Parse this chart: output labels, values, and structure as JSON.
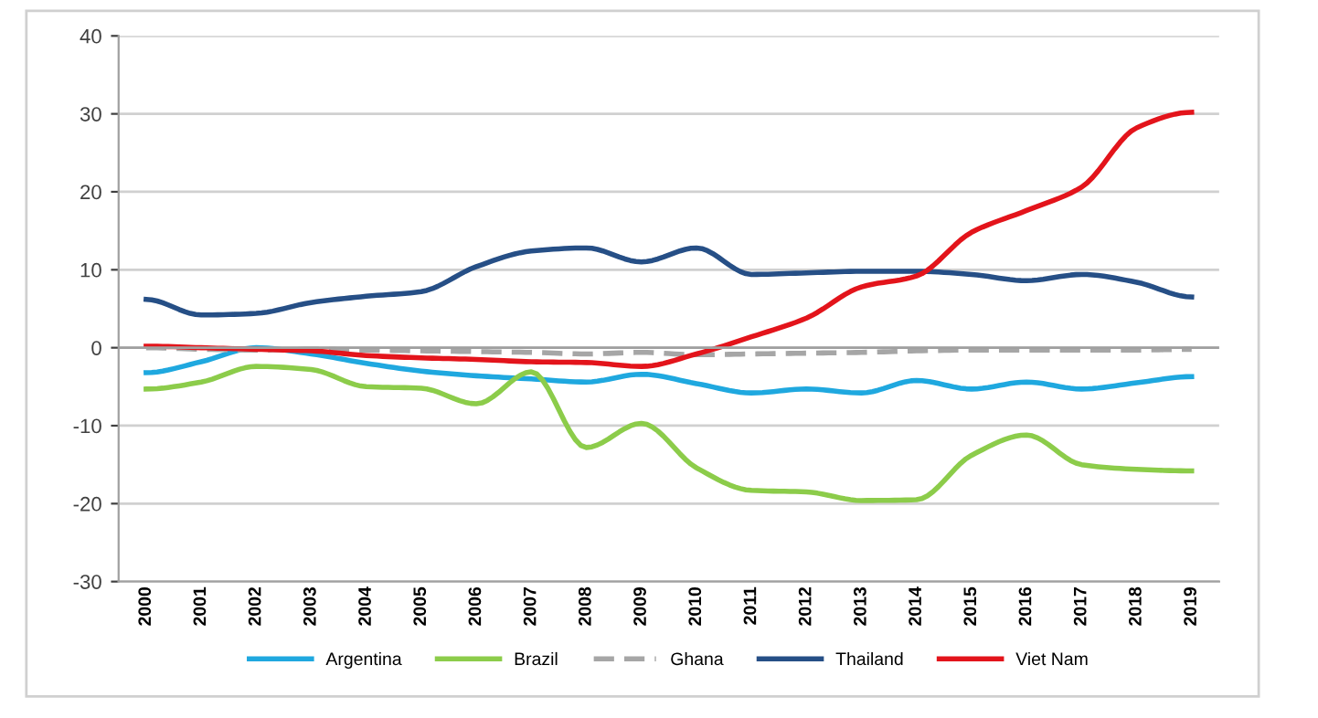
{
  "chart_data": {
    "type": "line",
    "categories": [
      "2000",
      "2001",
      "2002",
      "2003",
      "2004",
      "2005",
      "2006",
      "2007",
      "2008",
      "2009",
      "2010",
      "2011",
      "2012",
      "2013",
      "2014",
      "2015",
      "2016",
      "2017",
      "2018",
      "2019"
    ],
    "series": [
      {
        "name": "Argentina",
        "color": "#1fa8df",
        "values": [
          -3.2,
          -1.8,
          0,
          -0.8,
          -2,
          -3,
          -3.6,
          -4,
          -4.4,
          -3.4,
          -4.6,
          -5.8,
          -5.3,
          -5.8,
          -4.2,
          -5.3,
          -4.4,
          -5.3,
          -4.5,
          -3.7
        ]
      },
      {
        "name": "Brazil",
        "color": "#8ccc4a",
        "values": [
          -5.3,
          -4.4,
          -2.4,
          -2.8,
          -5,
          -5.2,
          -7.2,
          -3.1,
          -12.8,
          -9.7,
          -15.4,
          -18.3,
          -18.5,
          -19.6,
          -19.5,
          -13.8,
          -11.2,
          -15,
          -15.6,
          -15.8
        ]
      },
      {
        "name": "Ghana",
        "color": "#a6a6a6",
        "line_style": "dashed",
        "values": [
          0,
          -0.2,
          -0.3,
          -0.2,
          -0.3,
          -0.4,
          -0.5,
          -0.6,
          -0.8,
          -0.6,
          -0.9,
          -0.8,
          -0.7,
          -0.6,
          -0.4,
          -0.3,
          -0.3,
          -0.3,
          -0.3,
          -0.2
        ]
      },
      {
        "name": "Thailand",
        "color": "#264f86",
        "values": [
          6.2,
          4.2,
          4.4,
          5.8,
          6.6,
          7.2,
          10.4,
          12.4,
          12.8,
          11,
          12.8,
          9.4,
          9.6,
          9.8,
          9.8,
          9.4,
          8.6,
          9.4,
          8.4,
          6.5
        ]
      },
      {
        "name": "Viet Nam",
        "color": "#e3141b",
        "values": [
          0.2,
          0,
          -0.2,
          -0.4,
          -1,
          -1.3,
          -1.5,
          -1.8,
          -1.9,
          -2.4,
          -0.8,
          1.4,
          3.8,
          7.8,
          9.2,
          14.8,
          17.6,
          20.6,
          28.2,
          30.2
        ]
      }
    ],
    "ylim": [
      -30,
      40
    ],
    "yticks": [
      -30,
      -20,
      -10,
      0,
      10,
      20,
      30,
      40
    ],
    "grid": "y",
    "legend": "bottom",
    "line_style": "solid",
    "marker": "none"
  }
}
